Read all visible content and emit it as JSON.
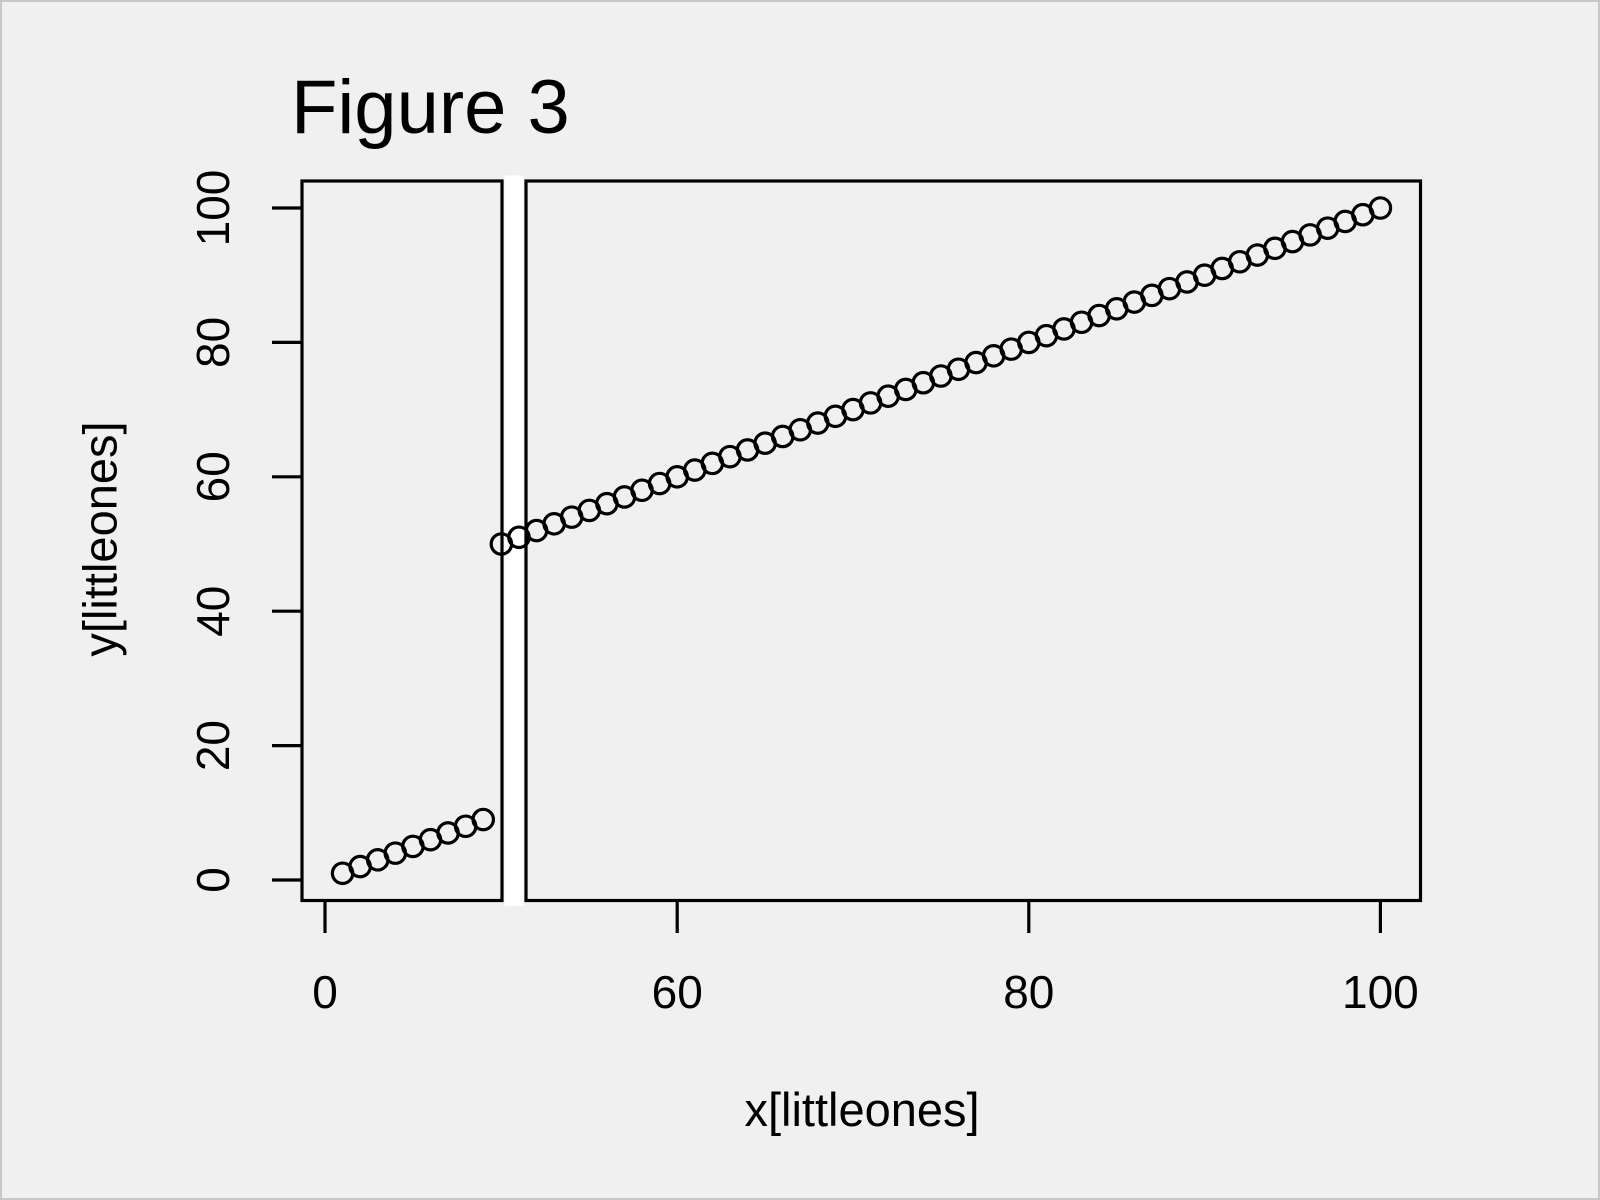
{
  "page": {
    "background_color": "#f0f0f1",
    "frame_color": "#c7c7c7"
  },
  "chart_data": {
    "type": "scatter",
    "title": "Figure 3",
    "xlabel": "x[littleones]",
    "ylabel": "y[littleones]",
    "marker": "open-circle",
    "x": [
      1,
      2,
      3,
      4,
      5,
      6,
      7,
      8,
      9,
      50,
      51,
      52,
      53,
      54,
      55,
      56,
      57,
      58,
      59,
      60,
      61,
      62,
      63,
      64,
      65,
      66,
      67,
      68,
      69,
      70,
      71,
      72,
      73,
      74,
      75,
      76,
      77,
      78,
      79,
      80,
      81,
      82,
      83,
      84,
      85,
      86,
      87,
      88,
      89,
      90,
      91,
      92,
      93,
      94,
      95,
      96,
      97,
      98,
      99,
      100
    ],
    "y": [
      1,
      2,
      3,
      4,
      5,
      6,
      7,
      8,
      9,
      50,
      51,
      52,
      53,
      54,
      55,
      56,
      57,
      58,
      59,
      60,
      61,
      62,
      63,
      64,
      65,
      66,
      67,
      68,
      69,
      70,
      71,
      72,
      73,
      74,
      75,
      76,
      77,
      78,
      79,
      80,
      81,
      82,
      83,
      84,
      85,
      86,
      87,
      88,
      89,
      90,
      91,
      92,
      93,
      94,
      95,
      96,
      97,
      98,
      99,
      100
    ],
    "x_ticks": [
      0,
      60,
      80,
      100
    ],
    "y_ticks": [
      0,
      20,
      40,
      60,
      80,
      100
    ],
    "axis_gap": {
      "from": 10,
      "to": 49
    },
    "xlim": [
      0,
      102
    ],
    "ylim": [
      0,
      100
    ],
    "grid": false,
    "legend": "none",
    "colors": {
      "points": "#000000",
      "axis": "#000000",
      "gap_fill": "#ffffff",
      "panel_background": "#f0f0f1"
    }
  }
}
